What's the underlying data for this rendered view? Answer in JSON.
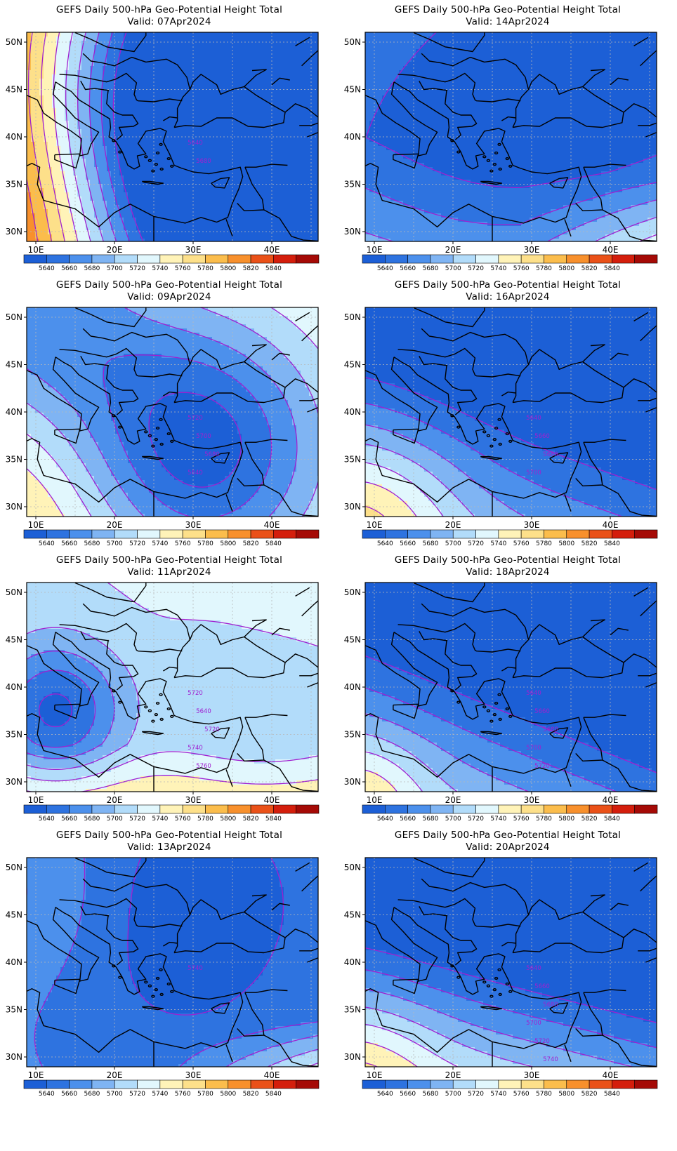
{
  "colors": {
    "levels": [
      "#1c5fd6",
      "#2e73e0",
      "#4c90ec",
      "#7fb4f3",
      "#b2dcfa",
      "#e1f7fd",
      "#fff3b8",
      "#fde08a",
      "#fbbd4c",
      "#f8902c",
      "#ea5118",
      "#d41e0c",
      "#a50a06"
    ],
    "contour": "#a020d0",
    "coast": "#000000",
    "grid": "#b8b8b8"
  },
  "axes": {
    "lat_ticks": [
      "50N",
      "45N",
      "40N",
      "35N",
      "30N"
    ],
    "lon_ticks": [
      "10E",
      "20E",
      "30E",
      "40E"
    ]
  },
  "colorbar": {
    "labels": [
      "5640",
      "5660",
      "5680",
      "5700",
      "5720",
      "5740",
      "5760",
      "5780",
      "5800",
      "5820",
      "5840"
    ]
  },
  "panels": [
    {
      "id": "p1",
      "title": "GEFS Daily 500-hPa Geo-Potential Height Total",
      "valid": "Valid: 07Apr2024",
      "field": "0",
      "labels": [
        "5640",
        "5680"
      ]
    },
    {
      "id": "p2",
      "title": "GEFS Daily 500-hPa Geo-Potential Height Total",
      "valid": "Valid: 14Apr2024",
      "field": "1",
      "labels": []
    },
    {
      "id": "p3",
      "title": "GEFS Daily 500-hPa Geo-Potential Height Total",
      "valid": "Valid: 09Apr2024",
      "field": "2",
      "labels": [
        "5720",
        "5700",
        "5680",
        "5640"
      ]
    },
    {
      "id": "p4",
      "title": "GEFS Daily 500-hPa Geo-Potential Height Total",
      "valid": "Valid: 16Apr2024",
      "field": "3",
      "labels": [
        "5640",
        "5660",
        "5680",
        "5700"
      ]
    },
    {
      "id": "p5",
      "title": "GEFS Daily 500-hPa Geo-Potential Height Total",
      "valid": "Valid: 11Apr2024",
      "field": "4",
      "labels": [
        "5720",
        "5640",
        "5720",
        "5740",
        "5760"
      ]
    },
    {
      "id": "p6",
      "title": "GEFS Daily 500-hPa Geo-Potential Height Total",
      "valid": "Valid: 18Apr2024",
      "field": "5",
      "labels": [
        "5640",
        "5660",
        "5680",
        "5700",
        "5720"
      ]
    },
    {
      "id": "p7",
      "title": "GEFS Daily 500-hPa Geo-Potential Height Total",
      "valid": "Valid: 13Apr2024",
      "field": "6",
      "labels": [
        "5740"
      ]
    },
    {
      "id": "p8",
      "title": "GEFS Daily 500-hPa Geo-Potential Height Total",
      "valid": "Valid: 20Apr2024",
      "field": "7",
      "labels": [
        "5640",
        "5660",
        "5680",
        "5700",
        "5720",
        "5740"
      ]
    }
  ]
}
